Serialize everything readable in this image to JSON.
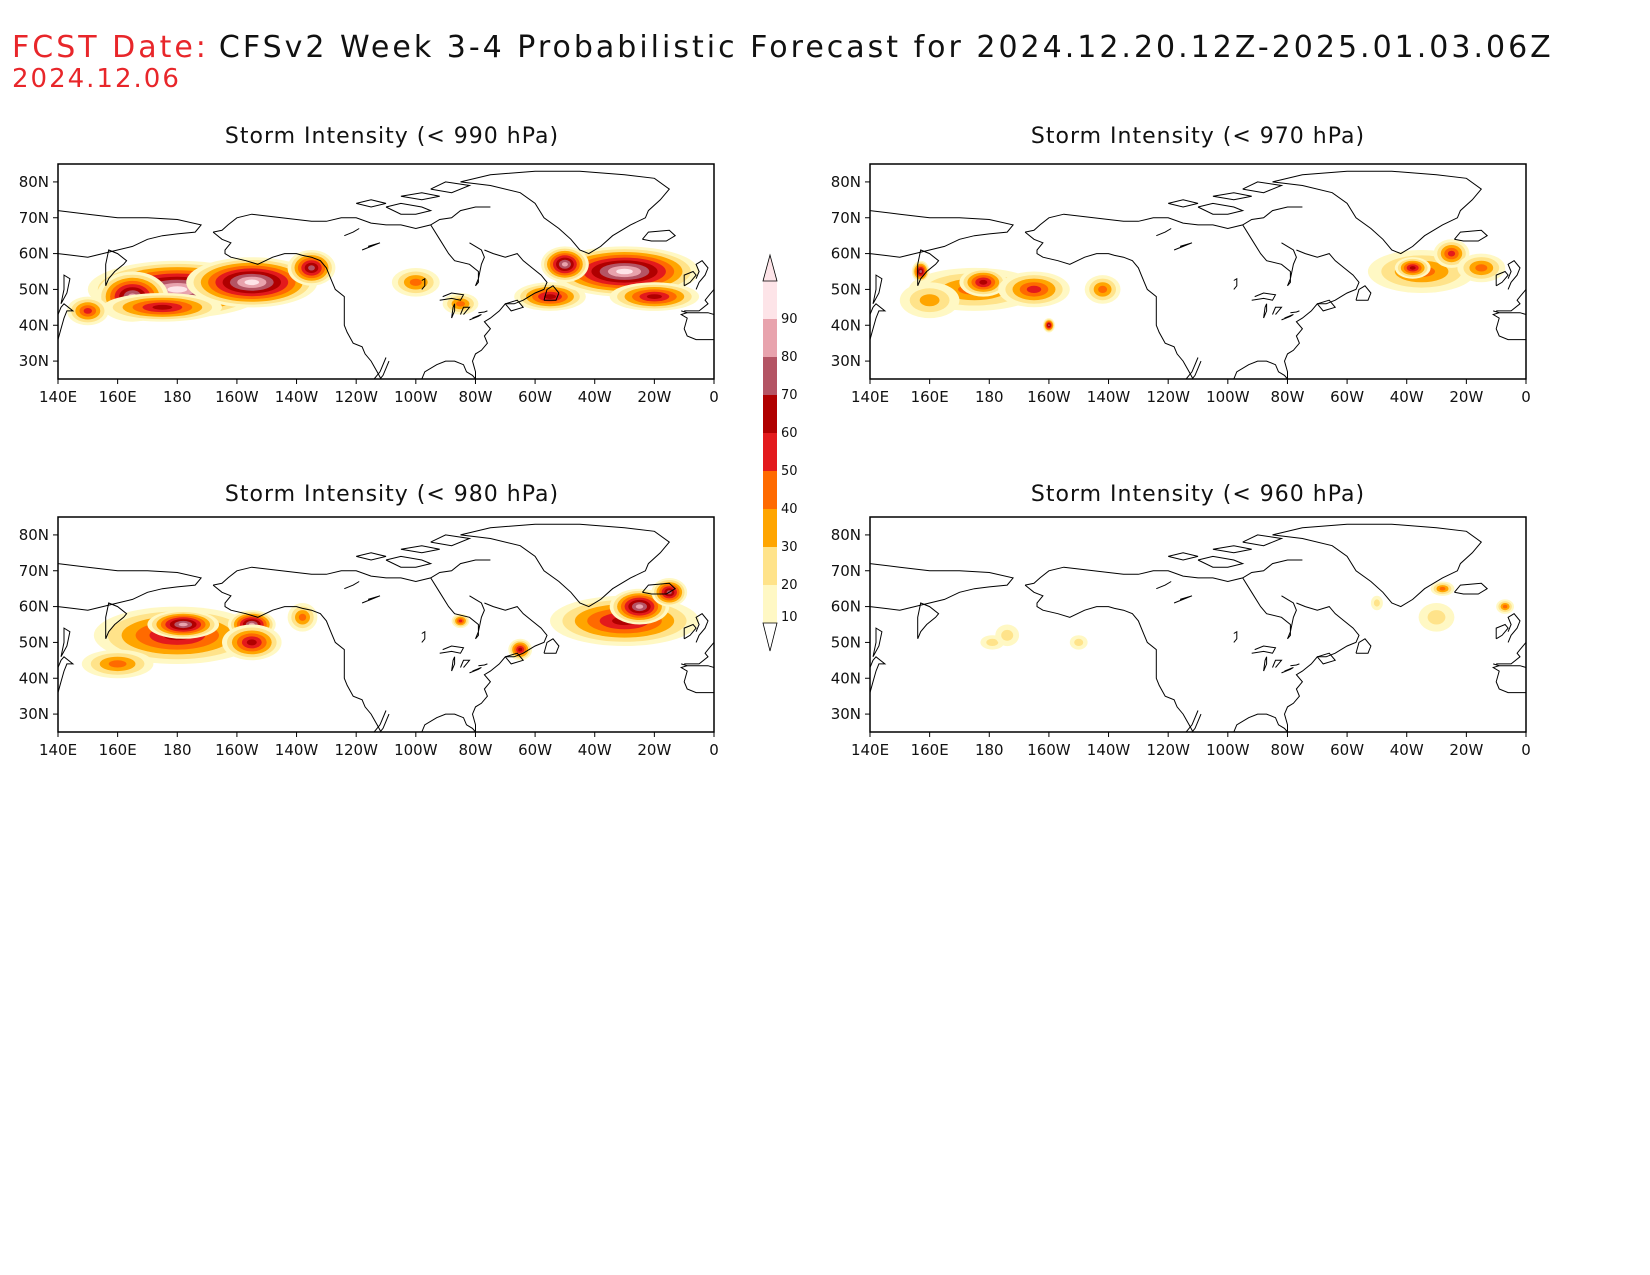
{
  "header": {
    "label": "FCST Date:",
    "title": "CFSv2 Week 3-4 Probabilistic Forecast for 2024.12.20.12Z-2025.01.03.06Z",
    "date": "2024.12.06"
  },
  "axes": {
    "lon_ticks": [
      "140E",
      "160E",
      "180",
      "160W",
      "140W",
      "120W",
      "100W",
      "80W",
      "60W",
      "40W",
      "20W",
      "0"
    ],
    "lat_ticks": [
      "80N",
      "70N",
      "60N",
      "50N",
      "40N",
      "30N"
    ],
    "lon_range": [
      140,
      360
    ],
    "lat_range": [
      25,
      85
    ]
  },
  "colorbar": {
    "levels": [
      "10",
      "20",
      "30",
      "40",
      "50",
      "60",
      "70",
      "80",
      "90"
    ],
    "colors": [
      "#fff8c4",
      "#ffe38a",
      "#ffa500",
      "#ff6a00",
      "#e31a1c",
      "#b00000",
      "#b45464",
      "#e8a3ad",
      "#fde4e8"
    ]
  },
  "panels": [
    {
      "title": "Storm Intensity (< 990 hPa)",
      "threshold": "990",
      "blobs": [
        {
          "lon": 180,
          "lat": 50,
          "rx": 30,
          "ry": 8,
          "level": 8
        },
        {
          "lon": 165,
          "lat": 48,
          "rx": 12,
          "ry": 7,
          "level": 7
        },
        {
          "lon": 205,
          "lat": 52,
          "rx": 22,
          "ry": 7,
          "level": 8
        },
        {
          "lon": 175,
          "lat": 45,
          "rx": 20,
          "ry": 4,
          "level": 5
        },
        {
          "lon": 150,
          "lat": 44,
          "rx": 7,
          "ry": 4,
          "level": 4
        },
        {
          "lon": 225,
          "lat": 56,
          "rx": 8,
          "ry": 5,
          "level": 6
        },
        {
          "lon": 260,
          "lat": 52,
          "rx": 8,
          "ry": 4,
          "level": 3
        },
        {
          "lon": 275,
          "lat": 46,
          "rx": 6,
          "ry": 3,
          "level": 3
        },
        {
          "lon": 305,
          "lat": 48,
          "rx": 12,
          "ry": 4,
          "level": 5
        },
        {
          "lon": 330,
          "lat": 55,
          "rx": 25,
          "ry": 7,
          "level": 8
        },
        {
          "lon": 310,
          "lat": 57,
          "rx": 8,
          "ry": 5,
          "level": 7
        },
        {
          "lon": 340,
          "lat": 48,
          "rx": 15,
          "ry": 4,
          "level": 5
        }
      ]
    },
    {
      "title": "Storm Intensity (< 970 hPa)",
      "threshold": "970",
      "blobs": [
        {
          "lon": 175,
          "lat": 50,
          "rx": 22,
          "ry": 6,
          "level": 3
        },
        {
          "lon": 178,
          "lat": 52,
          "rx": 8,
          "ry": 4,
          "level": 5
        },
        {
          "lon": 195,
          "lat": 50,
          "rx": 12,
          "ry": 5,
          "level": 4
        },
        {
          "lon": 160,
          "lat": 47,
          "rx": 10,
          "ry": 5,
          "level": 2
        },
        {
          "lon": 157,
          "lat": 55,
          "rx": 3,
          "ry": 3,
          "level": 6
        },
        {
          "lon": 200,
          "lat": 40,
          "rx": 2,
          "ry": 2,
          "level": 6
        },
        {
          "lon": 218,
          "lat": 50,
          "rx": 6,
          "ry": 4,
          "level": 3
        },
        {
          "lon": 325,
          "lat": 55,
          "rx": 18,
          "ry": 6,
          "level": 3
        },
        {
          "lon": 322,
          "lat": 56,
          "rx": 6,
          "ry": 3,
          "level": 5
        },
        {
          "lon": 335,
          "lat": 60,
          "rx": 6,
          "ry": 4,
          "level": 4
        },
        {
          "lon": 345,
          "lat": 56,
          "rx": 8,
          "ry": 4,
          "level": 3
        }
      ]
    },
    {
      "title": "Storm Intensity (< 980 hPa)",
      "threshold": "980",
      "blobs": [
        {
          "lon": 180,
          "lat": 52,
          "rx": 28,
          "ry": 8,
          "level": 5
        },
        {
          "lon": 182,
          "lat": 55,
          "rx": 12,
          "ry": 4,
          "level": 7
        },
        {
          "lon": 205,
          "lat": 55,
          "rx": 8,
          "ry": 4,
          "level": 7
        },
        {
          "lon": 160,
          "lat": 44,
          "rx": 12,
          "ry": 4,
          "level": 3
        },
        {
          "lon": 205,
          "lat": 50,
          "rx": 10,
          "ry": 5,
          "level": 5
        },
        {
          "lon": 222,
          "lat": 57,
          "rx": 5,
          "ry": 4,
          "level": 3
        },
        {
          "lon": 275,
          "lat": 56,
          "rx": 3,
          "ry": 2,
          "level": 4
        },
        {
          "lon": 295,
          "lat": 48,
          "rx": 4,
          "ry": 3,
          "level": 5
        },
        {
          "lon": 330,
          "lat": 56,
          "rx": 25,
          "ry": 7,
          "level": 5
        },
        {
          "lon": 335,
          "lat": 60,
          "rx": 10,
          "ry": 5,
          "level": 7
        },
        {
          "lon": 345,
          "lat": 64,
          "rx": 6,
          "ry": 4,
          "level": 6
        }
      ]
    },
    {
      "title": "Storm Intensity (< 960 hPa)",
      "threshold": "960",
      "blobs": [
        {
          "lon": 181,
          "lat": 50,
          "rx": 4,
          "ry": 2,
          "level": 1
        },
        {
          "lon": 186,
          "lat": 52,
          "rx": 4,
          "ry": 3,
          "level": 1
        },
        {
          "lon": 210,
          "lat": 50,
          "rx": 3,
          "ry": 2,
          "level": 1
        },
        {
          "lon": 330,
          "lat": 57,
          "rx": 6,
          "ry": 4,
          "level": 1
        },
        {
          "lon": 332,
          "lat": 65,
          "rx": 4,
          "ry": 2,
          "level": 3
        },
        {
          "lon": 353,
          "lat": 60,
          "rx": 3,
          "ry": 2,
          "level": 3
        },
        {
          "lon": 310,
          "lat": 61,
          "rx": 2,
          "ry": 2,
          "level": 1
        }
      ]
    }
  ]
}
